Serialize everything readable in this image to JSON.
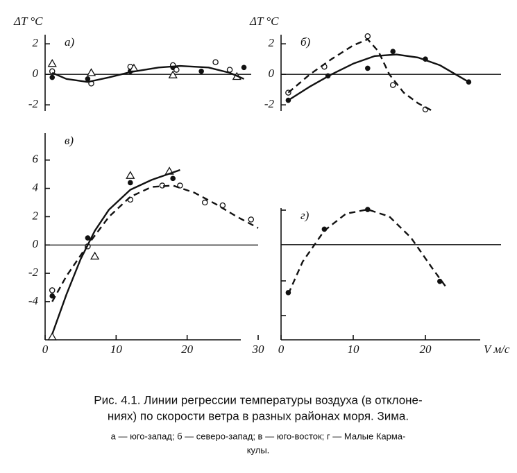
{
  "chart_data": [
    {
      "type": "scatter",
      "label": "а)",
      "ylabel": "ΔT °C",
      "xlim": [
        0,
        30
      ],
      "ylim": [
        -2.4,
        2.6
      ],
      "yticks": [
        2,
        0,
        -2
      ],
      "series": [
        {
          "marker": "filled",
          "x": [
            1,
            6,
            12,
            18,
            22,
            28
          ],
          "values": [
            -0.2,
            -0.3,
            0.2,
            0.45,
            0.2,
            0.45
          ]
        },
        {
          "marker": "open",
          "x": [
            1,
            6.5,
            12,
            18,
            18.5,
            24,
            26
          ],
          "values": [
            0.2,
            -0.6,
            0.5,
            0.6,
            0.3,
            0.8,
            0.3
          ]
        },
        {
          "marker": "triangle",
          "x": [
            1,
            6.5,
            12.5,
            18,
            27
          ],
          "values": [
            0.7,
            0.1,
            0.4,
            -0.05,
            -0.15
          ]
        },
        {
          "marker": "none",
          "dash": false,
          "x": [
            1,
            3,
            6,
            9,
            12,
            16,
            19,
            23,
            26,
            28
          ],
          "values": [
            0.1,
            -0.3,
            -0.5,
            -0.2,
            0.15,
            0.45,
            0.55,
            0.45,
            0.1,
            -0.3
          ]
        }
      ]
    },
    {
      "type": "scatter",
      "label": "б)",
      "ylabel": "ΔT °C",
      "xlim": [
        0,
        30
      ],
      "ylim": [
        -2.4,
        2.6
      ],
      "yticks": [
        2,
        0,
        -2
      ],
      "series": [
        {
          "marker": "filled",
          "x": [
            1,
            6.5,
            12,
            15.5,
            20,
            26
          ],
          "values": [
            -1.7,
            -0.1,
            0.4,
            1.5,
            1.0,
            -0.5
          ]
        },
        {
          "marker": "open",
          "x": [
            1,
            6,
            12,
            15.5,
            20
          ],
          "values": [
            -1.2,
            0.5,
            2.5,
            -0.7,
            -2.3
          ]
        },
        {
          "marker": "none",
          "dash": false,
          "x": [
            1,
            4,
            7,
            10,
            13,
            16,
            19,
            22,
            26
          ],
          "values": [
            -1.7,
            -0.8,
            0,
            0.7,
            1.2,
            1.3,
            1.1,
            0.6,
            -0.5
          ]
        },
        {
          "marker": "none",
          "dash": true,
          "x": [
            1,
            4,
            7,
            10,
            12,
            13.5,
            15,
            17,
            19,
            21
          ],
          "values": [
            -1.2,
            0,
            1,
            1.9,
            2.3,
            1.5,
            0,
            -1.2,
            -1.9,
            -2.4
          ]
        }
      ]
    },
    {
      "type": "scatter",
      "label": "в)",
      "xlim": [
        0,
        30
      ],
      "ylim": [
        -6.7,
        7.9
      ],
      "yticks": [
        6,
        4,
        2,
        0,
        -2,
        -4
      ],
      "xticks": [
        0,
        10,
        20,
        30
      ],
      "series": [
        {
          "marker": "filled",
          "x": [
            1,
            6,
            12,
            18
          ],
          "values": [
            -3.6,
            0.5,
            4.4,
            4.7
          ]
        },
        {
          "marker": "open",
          "x": [
            1,
            6,
            12,
            16.5,
            19,
            22.5,
            25,
            29
          ],
          "values": [
            -3.2,
            -0.1,
            3.2,
            4.2,
            4.2,
            3.0,
            2.8,
            1.8
          ]
        },
        {
          "marker": "triangle",
          "x": [
            1,
            7,
            12,
            17.5
          ],
          "values": [
            -6.5,
            -0.8,
            4.9,
            5.2
          ]
        },
        {
          "marker": "none",
          "dash": false,
          "x": [
            1,
            3,
            5,
            7,
            9,
            12,
            15,
            19
          ],
          "values": [
            -6.3,
            -3.5,
            -1,
            1,
            2.5,
            3.9,
            4.6,
            5.3
          ]
        },
        {
          "marker": "none",
          "dash": true,
          "x": [
            1,
            3,
            6,
            9,
            12,
            15,
            18,
            21,
            24,
            27,
            30
          ],
          "values": [
            -4,
            -2.2,
            0,
            2,
            3.4,
            4.1,
            4.2,
            3.7,
            2.9,
            2,
            1.2
          ]
        }
      ]
    },
    {
      "type": "scatter",
      "label": "г)",
      "xlabel": "V м/с",
      "xlim": [
        0,
        30
      ],
      "ylim": [
        -6.75,
        2.6
      ],
      "xticks": [
        0,
        10,
        20
      ],
      "series": [
        {
          "marker": "filled",
          "x": [
            1,
            6,
            12,
            22
          ],
          "values": [
            -3.4,
            1.1,
            2.5,
            -2.6
          ]
        },
        {
          "marker": "none",
          "dash": true,
          "x": [
            1,
            3,
            6,
            9,
            12,
            15,
            18,
            21,
            23
          ],
          "values": [
            -3.5,
            -1.2,
            1.0,
            2.2,
            2.5,
            2.0,
            0.5,
            -1.7,
            -3.1
          ]
        }
      ]
    }
  ],
  "caption": [
    "Рис. 4.1. Линии регрессии температуры воздуха (в отклоне-",
    "ниях) по скорости ветра в разных районах моря. Зима.",
    "а — юго-запад; б — северо-запад; в — юго-восток; г — Малые Карма-",
    "кулы."
  ]
}
